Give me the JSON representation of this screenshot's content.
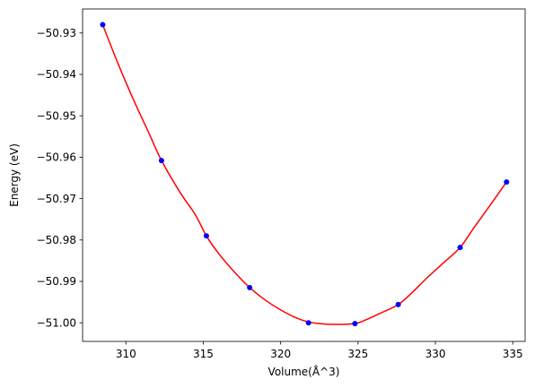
{
  "chart_data": {
    "type": "scatter",
    "title": "",
    "xlabel": "Volume(Å^3)",
    "ylabel": "Energy (eV)",
    "xlim": [
      307.2,
      335.8
    ],
    "ylim": [
      -51.0045,
      -50.9242
    ],
    "xticks": [
      {
        "value": 310,
        "label": "310"
      },
      {
        "value": 315,
        "label": "315"
      },
      {
        "value": 320,
        "label": "320"
      },
      {
        "value": 325,
        "label": "325"
      },
      {
        "value": 330,
        "label": "330"
      },
      {
        "value": 335,
        "label": "335"
      }
    ],
    "yticks": [
      {
        "value": -50.93,
        "label": "−50.93"
      },
      {
        "value": -50.94,
        "label": "−50.94"
      },
      {
        "value": -50.95,
        "label": "−50.95"
      },
      {
        "value": -50.96,
        "label": "−50.96"
      },
      {
        "value": -50.97,
        "label": "−50.97"
      },
      {
        "value": -50.98,
        "label": "−50.98"
      },
      {
        "value": -50.99,
        "label": "−50.99"
      },
      {
        "value": -51.0,
        "label": "−51.00"
      }
    ],
    "grid": false,
    "legend": "none",
    "series": [
      {
        "kind": "points",
        "color": "#0000ff",
        "x": [
          308.5,
          312.3,
          315.2,
          318.0,
          321.8,
          324.8,
          327.6,
          331.6,
          334.6
        ],
        "y": [
          -50.928,
          -50.9608,
          -50.979,
          -50.9915,
          -51.0,
          -51.0002,
          -50.9956,
          -50.9818,
          -50.966
        ]
      },
      {
        "kind": "line",
        "color": "#ff0000",
        "x": [
          308.5,
          309.5,
          310.5,
          311.5,
          312.3,
          313.5,
          314.5,
          315.2,
          316.0,
          317.0,
          318.0,
          319.0,
          320.0,
          321.0,
          321.8,
          322.5,
          323.5,
          324.8,
          325.5,
          326.5,
          327.6,
          328.5,
          329.5,
          330.5,
          331.6,
          332.5,
          333.5,
          334.6
        ],
        "y": [
          -50.928,
          -50.9375,
          -50.9462,
          -50.9543,
          -50.9608,
          -50.9685,
          -50.974,
          -50.979,
          -50.9833,
          -50.9877,
          -50.9915,
          -50.9945,
          -50.9969,
          -50.9988,
          -50.9998,
          -51.0002,
          -51.0004,
          -51.0002,
          -50.9993,
          -50.9976,
          -50.9956,
          -50.9927,
          -50.989,
          -50.9856,
          -50.9818,
          -50.977,
          -50.9718,
          -50.966
        ]
      }
    ]
  }
}
